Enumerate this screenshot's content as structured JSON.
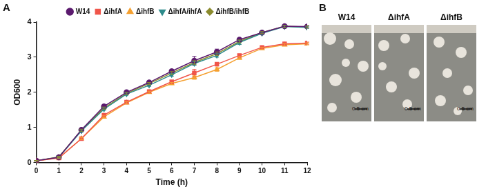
{
  "chart_data": {
    "type": "line",
    "panel": "A",
    "x_label": "Time (h)",
    "y_label": "OD600",
    "x": [
      0,
      1,
      2,
      3,
      4,
      5,
      6,
      7,
      8,
      9,
      10,
      11,
      12
    ],
    "xlim": [
      0,
      12
    ],
    "xticks": [
      0,
      1,
      2,
      3,
      4,
      5,
      6,
      7,
      8,
      9,
      10,
      11,
      12
    ],
    "ylim": [
      0,
      4
    ],
    "yticks": [
      0,
      1,
      2,
      3,
      4
    ],
    "grid": false,
    "legend": "top",
    "series": [
      {
        "name": "W14",
        "color": "#5b1a6e",
        "marker": "circle",
        "values": [
          0.05,
          0.15,
          0.93,
          1.6,
          2.0,
          2.28,
          2.6,
          2.9,
          3.15,
          3.5,
          3.7,
          3.88,
          3.87
        ],
        "errors": [
          0.01,
          0.02,
          0.03,
          0.03,
          0.03,
          0.04,
          0.04,
          0.12,
          0.08,
          0.04,
          0.03,
          0.03,
          0.03
        ]
      },
      {
        "name": "ΔihfA",
        "color": "#f0554a",
        "marker": "square",
        "values": [
          0.05,
          0.13,
          0.68,
          1.35,
          1.72,
          2.02,
          2.3,
          2.55,
          2.8,
          3.05,
          3.28,
          3.38,
          3.4
        ],
        "errors": [
          0.01,
          0.02,
          0.03,
          0.03,
          0.03,
          0.03,
          0.04,
          0.1,
          0.05,
          0.04,
          0.03,
          0.03,
          0.03
        ]
      },
      {
        "name": "ΔihfB",
        "color": "#f5a030",
        "marker": "triangle",
        "values": [
          0.05,
          0.13,
          0.68,
          1.3,
          1.7,
          2.0,
          2.25,
          2.42,
          2.65,
          2.98,
          3.25,
          3.35,
          3.38
        ],
        "errors": [
          0.01,
          0.02,
          0.03,
          0.03,
          0.03,
          0.03,
          0.03,
          0.05,
          0.05,
          0.04,
          0.03,
          0.03,
          0.03
        ]
      },
      {
        "name": "ΔihfA/ihfA",
        "color": "#2e8b8b",
        "marker": "triangle-down",
        "values": [
          0.05,
          0.15,
          0.9,
          1.52,
          1.95,
          2.2,
          2.5,
          2.82,
          3.05,
          3.42,
          3.68,
          3.87,
          3.85
        ],
        "errors": [
          0.01,
          0.02,
          0.03,
          0.03,
          0.03,
          0.03,
          0.04,
          0.05,
          0.05,
          0.06,
          0.03,
          0.03,
          0.03
        ]
      },
      {
        "name": "ΔihfB/ihfB",
        "color": "#8b8b2e",
        "marker": "diamond",
        "values": [
          0.05,
          0.16,
          0.92,
          1.55,
          1.97,
          2.25,
          2.55,
          2.85,
          3.1,
          3.45,
          3.7,
          3.88,
          3.86
        ],
        "errors": [
          0.01,
          0.02,
          0.03,
          0.03,
          0.03,
          0.03,
          0.04,
          0.05,
          0.05,
          0.04,
          0.03,
          0.03,
          0.03
        ]
      }
    ]
  },
  "photo_panel": {
    "panel": "B",
    "photos": [
      {
        "label": "W14",
        "scale_bar": "0.5 cm"
      },
      {
        "label": "ΔihfA",
        "scale_bar": "0.5 cm"
      },
      {
        "label": "ΔihfB",
        "scale_bar": "0.5 cm"
      }
    ]
  }
}
